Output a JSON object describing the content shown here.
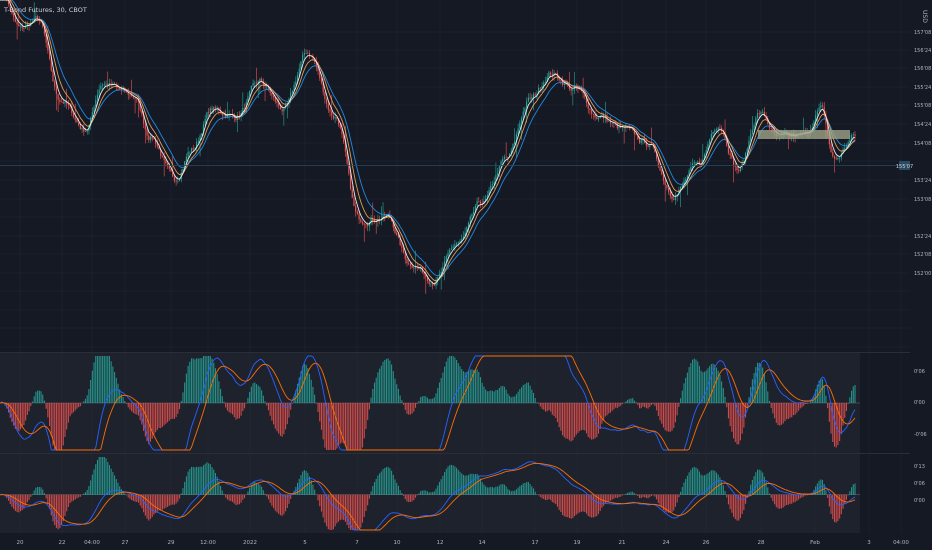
{
  "header": {
    "symbol_title": "T-Bond Futures, 30, CBOT",
    "currency": "USD"
  },
  "colors": {
    "background": "#151924",
    "panel_background": "#1e222d",
    "grid": "#232836",
    "axis_text": "#b2b5be",
    "candle_up": "#26a69a",
    "candle_down": "#ef5350",
    "ma_fast": "#ffffff",
    "ma_mid": "#f6a85a",
    "ma_slow": "#2196f3",
    "current_price_line": "#2a4a60",
    "highlight_zone": "#9da388",
    "macd_line": "#2962ff",
    "signal_line": "#ff6d00",
    "hist_up": "#26a69a",
    "hist_down": "#ef5350"
  },
  "chart_data": [
    {
      "type": "candlestick",
      "title": "T-Bond Futures, 30, CBOT",
      "ylabel": "USD",
      "ylim": [
        152.0,
        157.24
      ],
      "y_ticks": [
        "157'08",
        "156'24",
        "156'08",
        "155'24",
        "155'08",
        "154'24",
        "154'08",
        "153'24",
        "153'08",
        "152'24",
        "152'08",
        "152'00"
      ],
      "x_ticks": [
        "20",
        "22",
        "04:00",
        "27",
        "29",
        "12:00",
        "2022",
        "5",
        "7",
        "10",
        "12",
        "14",
        "17",
        "19",
        "21",
        "24",
        "26",
        "28",
        "Feb",
        "3",
        "04:00"
      ],
      "last_price_label": "155'07",
      "overlays": [
        "fast moving average",
        "medium moving average",
        "slow moving average"
      ],
      "annotations": [
        "horizontal resistance zone near 155'24"
      ],
      "anchor_points": [
        [
          0,
          157.4
        ],
        [
          12,
          156.8
        ],
        [
          22,
          156.95
        ],
        [
          35,
          155.75
        ],
        [
          50,
          155.3
        ],
        [
          60,
          156.0
        ],
        [
          78,
          155.8
        ],
        [
          88,
          155.2
        ],
        [
          102,
          154.55
        ],
        [
          112,
          155.0
        ],
        [
          124,
          155.6
        ],
        [
          138,
          155.5
        ],
        [
          152,
          156.0
        ],
        [
          166,
          155.6
        ],
        [
          180,
          156.45
        ],
        [
          196,
          155.5
        ],
        [
          210,
          153.95
        ],
        [
          226,
          154.0
        ],
        [
          240,
          153.3
        ],
        [
          254,
          153.05
        ],
        [
          268,
          153.6
        ],
        [
          282,
          154.2
        ],
        [
          296,
          154.85
        ],
        [
          310,
          155.75
        ],
        [
          322,
          156.15
        ],
        [
          336,
          155.9
        ],
        [
          350,
          155.5
        ],
        [
          364,
          155.3
        ],
        [
          378,
          155.1
        ],
        [
          394,
          154.35
        ],
        [
          408,
          154.75
        ],
        [
          420,
          155.4
        ],
        [
          432,
          154.7
        ],
        [
          444,
          155.55
        ],
        [
          456,
          155.15
        ],
        [
          470,
          155.2
        ],
        [
          480,
          155.6
        ],
        [
          488,
          154.85
        ],
        [
          500,
          155.2
        ]
      ]
    },
    {
      "type": "line",
      "title": "Oscillator 1",
      "y_ticks": [
        "0'06",
        "0'00",
        "-0'06"
      ],
      "ylim": [
        -0.1,
        0.1
      ],
      "series": [
        {
          "role": "histogram"
        },
        {
          "role": "fast line"
        },
        {
          "role": "slow line"
        }
      ]
    },
    {
      "type": "line",
      "title": "Oscillator 2",
      "y_ticks": [
        "0'13",
        "0'06",
        "0'00"
      ],
      "ylim": [
        -0.14,
        0.15
      ],
      "series": [
        {
          "role": "histogram"
        },
        {
          "role": "fast line"
        },
        {
          "role": "slow line"
        }
      ]
    }
  ]
}
